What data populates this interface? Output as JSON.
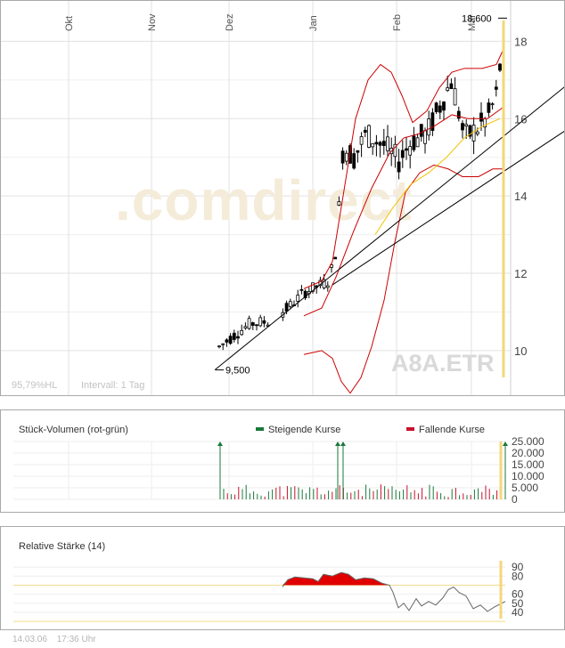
{
  "chart_data": [
    {
      "type": "candlestick",
      "symbol": "A8A.ETR",
      "watermark": ".comdirect",
      "months": [
        "Okt",
        "Nov",
        "Dez",
        "Jan",
        "Feb",
        "Mär"
      ],
      "yticks": [
        10,
        12,
        14,
        16,
        18
      ],
      "ylim": [
        8.8,
        19
      ],
      "low_label": "9,500",
      "high_label": "18,600",
      "footer_left": "95,79%HL",
      "interval": "Intervall: 1 Tag",
      "colors": {
        "candle": "#000000",
        "bollinger": "#cc0000",
        "sma": "#f2c200",
        "trend": "#000000",
        "marker": "#f5d67a"
      }
    },
    {
      "type": "bar",
      "title": "Stück-Volumen (rot-grün)",
      "legend": [
        {
          "name": "Steigende Kurse",
          "color": "#1a7a3a"
        },
        {
          "name": "Fallende Kurse",
          "color": "#c8102e"
        }
      ],
      "yticks": [
        "25.000",
        "20.000",
        "15.000",
        "10.000",
        "5.000",
        "0"
      ],
      "ylim": [
        0,
        25000
      ]
    },
    {
      "type": "area",
      "title": "Relative Stärke (14)",
      "yticks": [
        90,
        80,
        60,
        50,
        40
      ],
      "ylim": [
        35,
        95
      ],
      "levels": [
        70,
        30
      ],
      "colors": {
        "overbought": "#e00000",
        "line": "#666666",
        "level": "#f0dc8c"
      }
    }
  ],
  "footer": {
    "date": "14.03.06",
    "time": "17:36 Uhr"
  }
}
